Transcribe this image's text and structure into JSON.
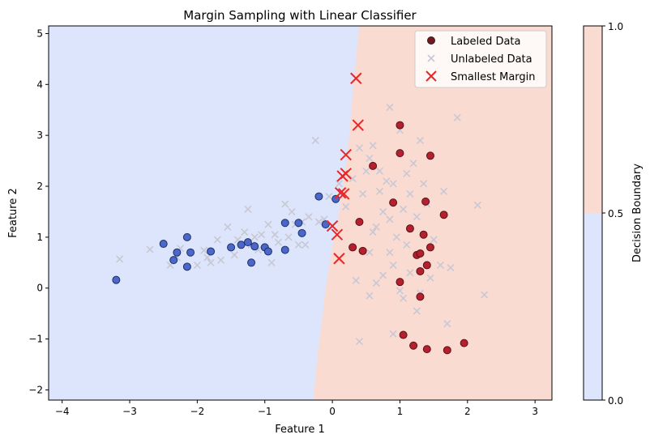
{
  "chart_data": {
    "type": "scatter",
    "title": "Margin Sampling with Linear Classifier",
    "xlabel": "Feature 1",
    "ylabel": "Feature 2",
    "xlim": [
      -4.2,
      3.25
    ],
    "ylim": [
      -2.2,
      5.15
    ],
    "xticks": [
      -4,
      -3,
      -2,
      -1,
      0,
      1,
      2,
      3
    ],
    "yticks": [
      -2,
      -1,
      0,
      1,
      2,
      3,
      4,
      5
    ],
    "xtick_labels": [
      "−4",
      "−3",
      "−2",
      "−1",
      "0",
      "1",
      "2",
      "3"
    ],
    "ytick_labels": [
      "−2",
      "−1",
      "0",
      "1",
      "2",
      "3",
      "4",
      "5"
    ],
    "background_regions": {
      "class0_color": "#dce5fb",
      "class1_color": "#fadbd2",
      "boundary": [
        [
          0.4,
          5.15
        ],
        [
          0.35,
          4.5
        ],
        [
          0.3,
          3.8
        ],
        [
          0.25,
          3.0
        ],
        [
          0.18,
          2.2
        ],
        [
          0.1,
          1.5
        ],
        [
          0.0,
          0.8
        ],
        [
          -0.1,
          0.0
        ],
        [
          -0.15,
          -0.6
        ],
        [
          -0.22,
          -1.3
        ],
        [
          -0.28,
          -2.2
        ]
      ]
    },
    "legend": {
      "position": "top-right",
      "entries": [
        "Labeled Data",
        "Unlabeled Data",
        "Smallest Margin"
      ]
    },
    "colorbar": {
      "label": "Decision Boundary",
      "ticks": [
        "0.0",
        "0.5",
        "1.0"
      ],
      "colors": [
        "#dce5fb",
        "#fadbd2"
      ]
    },
    "series": [
      {
        "name": "Labeled Data",
        "class0": [
          [
            -3.2,
            0.16
          ],
          [
            -2.5,
            0.87
          ],
          [
            -2.35,
            0.55
          ],
          [
            -2.3,
            0.7
          ],
          [
            -2.15,
            1.0
          ],
          [
            -2.1,
            0.7
          ],
          [
            -2.15,
            0.42
          ],
          [
            -1.8,
            0.72
          ],
          [
            -1.5,
            0.8
          ],
          [
            -1.35,
            0.85
          ],
          [
            -1.25,
            0.9
          ],
          [
            -1.15,
            0.82
          ],
          [
            -1.2,
            0.5
          ],
          [
            -1.0,
            0.8
          ],
          [
            -0.95,
            0.72
          ],
          [
            -0.7,
            0.75
          ],
          [
            -0.7,
            1.28
          ],
          [
            -0.5,
            1.28
          ],
          [
            -0.45,
            1.08
          ],
          [
            -0.2,
            1.8
          ],
          [
            -0.1,
            1.25
          ],
          [
            0.05,
            1.75
          ]
        ],
        "class1": [
          [
            0.4,
            1.3
          ],
          [
            0.3,
            0.8
          ],
          [
            0.45,
            0.73
          ],
          [
            0.6,
            2.4
          ],
          [
            0.9,
            1.68
          ],
          [
            1.0,
            2.65
          ],
          [
            1.0,
            3.2
          ],
          [
            1.0,
            0.12
          ],
          [
            1.05,
            -0.92
          ],
          [
            1.15,
            1.17
          ],
          [
            1.2,
            -1.13
          ],
          [
            1.25,
            0.65
          ],
          [
            1.3,
            0.33
          ],
          [
            1.3,
            0.68
          ],
          [
            1.3,
            -0.17
          ],
          [
            1.35,
            1.05
          ],
          [
            1.38,
            1.7
          ],
          [
            1.4,
            -1.2
          ],
          [
            1.4,
            0.45
          ],
          [
            1.45,
            2.6
          ],
          [
            1.45,
            0.8
          ],
          [
            1.65,
            1.44
          ],
          [
            1.7,
            -1.22
          ],
          [
            1.95,
            -1.08
          ]
        ]
      },
      {
        "name": "Unlabeled Data",
        "points": [
          [
            -3.15,
            0.57
          ],
          [
            -2.7,
            0.76
          ],
          [
            -2.4,
            0.45
          ],
          [
            -2.3,
            0.6
          ],
          [
            -2.25,
            0.78
          ],
          [
            -2.0,
            0.45
          ],
          [
            -1.9,
            0.74
          ],
          [
            -1.85,
            0.6
          ],
          [
            -1.8,
            0.5
          ],
          [
            -1.7,
            0.95
          ],
          [
            -1.65,
            0.55
          ],
          [
            -1.55,
            1.2
          ],
          [
            -1.45,
            0.65
          ],
          [
            -1.4,
            0.95
          ],
          [
            -1.3,
            1.1
          ],
          [
            -1.25,
            1.55
          ],
          [
            -1.2,
            0.85
          ],
          [
            -1.15,
            1.0
          ],
          [
            -1.1,
            0.75
          ],
          [
            -1.05,
            1.05
          ],
          [
            -0.95,
            1.25
          ],
          [
            -0.9,
            0.5
          ],
          [
            -0.85,
            1.05
          ],
          [
            -0.8,
            0.9
          ],
          [
            -0.7,
            1.65
          ],
          [
            -0.65,
            1.0
          ],
          [
            -0.6,
            1.5
          ],
          [
            -0.55,
            1.25
          ],
          [
            -0.5,
            0.85
          ],
          [
            -0.45,
            1.3
          ],
          [
            -0.4,
            0.85
          ],
          [
            -0.35,
            1.4
          ],
          [
            -0.25,
            2.9
          ],
          [
            -0.2,
            1.3
          ],
          [
            -0.12,
            1.35
          ],
          [
            -0.05,
            1.8
          ],
          [
            0.1,
            2.05
          ],
          [
            0.2,
            1.6
          ],
          [
            0.3,
            2.15
          ],
          [
            0.4,
            2.75
          ],
          [
            0.45,
            1.85
          ],
          [
            0.5,
            2.3
          ],
          [
            0.55,
            2.55
          ],
          [
            0.6,
            2.8
          ],
          [
            0.65,
            1.2
          ],
          [
            0.7,
            2.3
          ],
          [
            0.75,
            1.5
          ],
          [
            0.8,
            2.1
          ],
          [
            0.85,
            1.35
          ],
          [
            0.9,
            2.05
          ],
          [
            0.95,
            1.0
          ],
          [
            1.0,
            3.1
          ],
          [
            1.05,
            1.55
          ],
          [
            1.1,
            2.25
          ],
          [
            1.15,
            1.85
          ],
          [
            1.2,
            2.45
          ],
          [
            1.25,
            1.4
          ],
          [
            1.3,
            2.9
          ],
          [
            1.35,
            2.05
          ],
          [
            1.4,
            1.65
          ],
          [
            1.5,
            0.95
          ],
          [
            1.6,
            0.45
          ],
          [
            1.65,
            1.9
          ],
          [
            1.7,
            -0.7
          ],
          [
            1.75,
            0.4
          ],
          [
            1.85,
            3.35
          ],
          [
            2.15,
            1.63
          ],
          [
            2.25,
            -0.13
          ],
          [
            0.85,
            3.55
          ],
          [
            0.55,
            -0.15
          ],
          [
            0.4,
            -1.05
          ],
          [
            0.65,
            0.1
          ],
          [
            0.75,
            0.25
          ],
          [
            0.9,
            0.45
          ],
          [
            1.0,
            -0.05
          ],
          [
            1.15,
            0.3
          ],
          [
            1.25,
            -0.45
          ],
          [
            1.05,
            -0.2
          ],
          [
            0.9,
            -0.9
          ],
          [
            1.3,
            -0.1
          ],
          [
            1.45,
            0.2
          ],
          [
            0.55,
            0.7
          ],
          [
            0.7,
            1.9
          ],
          [
            0.85,
            0.7
          ],
          [
            0.35,
            0.15
          ],
          [
            0.6,
            1.1
          ],
          [
            1.1,
            0.85
          ]
        ]
      },
      {
        "name": "Smallest Margin",
        "points": [
          [
            0.35,
            4.12
          ],
          [
            0.38,
            3.2
          ],
          [
            0.2,
            2.62
          ],
          [
            0.15,
            2.2
          ],
          [
            0.2,
            2.25
          ],
          [
            0.17,
            1.85
          ],
          [
            0.12,
            1.87
          ],
          [
            0.0,
            1.22
          ],
          [
            0.07,
            1.05
          ],
          [
            0.1,
            0.58
          ]
        ]
      }
    ]
  }
}
